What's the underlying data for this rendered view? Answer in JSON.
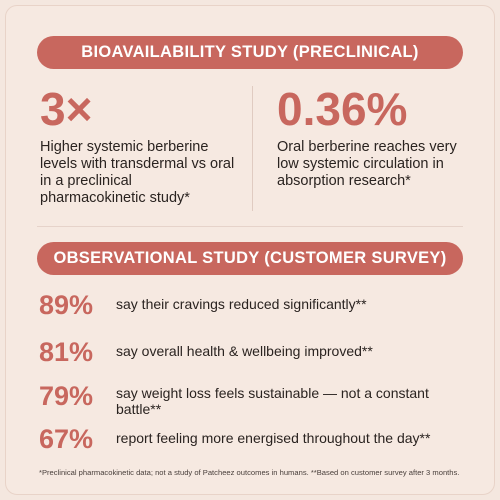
{
  "sections": {
    "preclinical": {
      "heading": "BIOAVAILABILITY STUDY (PRECLINICAL)",
      "stats": [
        {
          "value": "3×",
          "text": "Higher systemic berberine levels with transdermal vs oral in a preclinical pharmacokinetic study*"
        },
        {
          "value": "0.36%",
          "text": "Oral berberine reaches very low systemic circulation in absorption research*"
        }
      ]
    },
    "observational": {
      "heading": "OBSERVATIONAL STUDY (CUSTOMER SURVEY)",
      "stats": [
        {
          "value": "89%",
          "text": "say their cravings reduced significantly**"
        },
        {
          "value": "81%",
          "text": "say overall health & wellbeing improved**"
        },
        {
          "value": "79%",
          "text": "say weight loss feels sustainable — not a constant battle**"
        },
        {
          "value": "67%",
          "text": "report feeling more energised throughout the day**"
        }
      ]
    }
  },
  "footnote": "*Preclinical pharmacokinetic data; not a study of Patcheez outcomes in humans. **Based on customer survey after 3 months.",
  "colors": {
    "accent": "#c8675e",
    "background": "#f6e9e1",
    "text": "#2a2320"
  }
}
